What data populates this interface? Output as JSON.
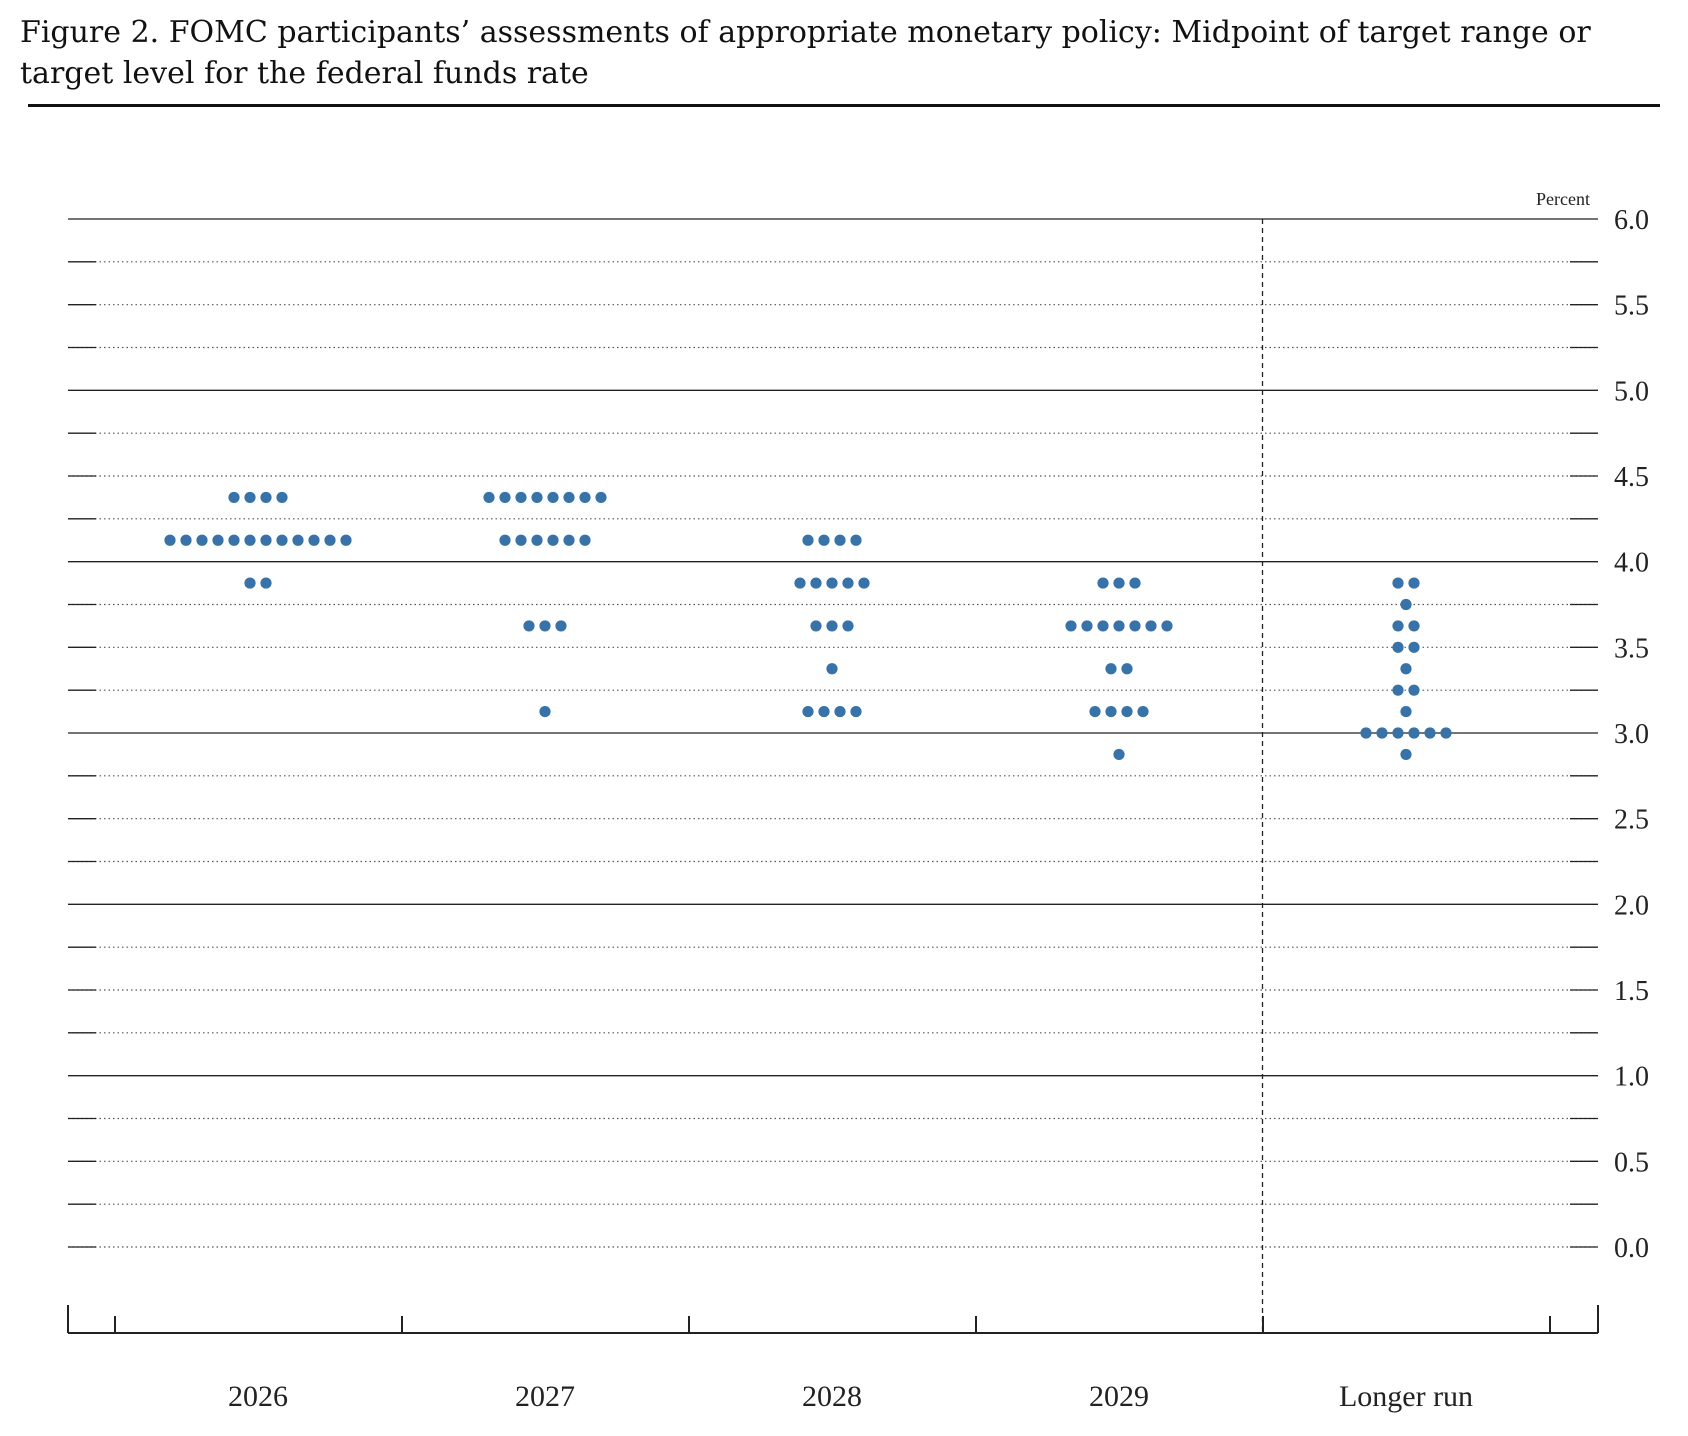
{
  "figure": {
    "title": "Figure 2. FOMC participants’ assessments of appropriate monetary policy: Midpoint of target range or target level for the federal funds rate"
  },
  "colors": {
    "dot": "#3772a8",
    "line": "#222222"
  },
  "chart_data": {
    "type": "scatter",
    "subtype": "dot-plot",
    "unit_label": "Percent",
    "ylim": [
      0,
      6
    ],
    "yticks": [
      "0.0",
      "0.5",
      "1.0",
      "1.5",
      "2.0",
      "2.5",
      "3.0",
      "3.5",
      "4.0",
      "4.5",
      "5.0",
      "5.5",
      "6.0"
    ],
    "minor_step": 0.25,
    "categories": [
      "2026",
      "2027",
      "2028",
      "2029",
      "Longer run"
    ],
    "divider_after": "2029",
    "series": [
      {
        "category": "2026",
        "dots": [
          {
            "y": 4.375,
            "count": 4
          },
          {
            "y": 4.125,
            "count": 12
          },
          {
            "y": 3.875,
            "count": 2
          }
        ]
      },
      {
        "category": "2027",
        "dots": [
          {
            "y": 4.375,
            "count": 8
          },
          {
            "y": 4.125,
            "count": 6
          },
          {
            "y": 3.625,
            "count": 3
          },
          {
            "y": 3.125,
            "count": 1
          }
        ]
      },
      {
        "category": "2028",
        "dots": [
          {
            "y": 4.125,
            "count": 4
          },
          {
            "y": 3.875,
            "count": 5
          },
          {
            "y": 3.625,
            "count": 3
          },
          {
            "y": 3.375,
            "count": 1
          },
          {
            "y": 3.125,
            "count": 4
          }
        ]
      },
      {
        "category": "2029",
        "dots": [
          {
            "y": 3.875,
            "count": 3
          },
          {
            "y": 3.625,
            "count": 7
          },
          {
            "y": 3.375,
            "count": 2
          },
          {
            "y": 3.125,
            "count": 4
          },
          {
            "y": 2.875,
            "count": 1
          }
        ]
      },
      {
        "category": "Longer run",
        "dots": [
          {
            "y": 3.875,
            "count": 2
          },
          {
            "y": 3.75,
            "count": 1
          },
          {
            "y": 3.625,
            "count": 2
          },
          {
            "y": 3.5,
            "count": 2
          },
          {
            "y": 3.375,
            "count": 1
          },
          {
            "y": 3.25,
            "count": 2
          },
          {
            "y": 3.125,
            "count": 1
          },
          {
            "y": 3.0,
            "count": 6
          },
          {
            "y": 2.875,
            "count": 1
          }
        ]
      }
    ]
  }
}
